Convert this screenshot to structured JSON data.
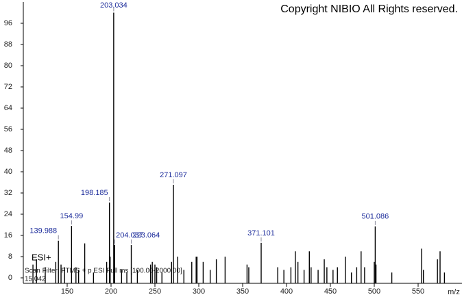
{
  "chart_data": {
    "type": "stem",
    "copyright": "Copyright NIBIO All Rights reserved.",
    "ionization": "ESI+",
    "scan_filter": "Scan Filter: FTMS + p ESI Full ms [100.00-2000.00]",
    "retention_time": "15.042",
    "x_label": "m/z",
    "xlim": [
      100,
      600
    ],
    "ylim": [
      0,
      104
    ],
    "xticks": [
      150,
      200,
      250,
      300,
      350,
      400,
      450,
      500,
      550
    ],
    "yticks": [
      0,
      8,
      16,
      24,
      32,
      40,
      48,
      56,
      64,
      72,
      80,
      88,
      96
    ],
    "series": [
      {
        "color": "#000000",
        "show_labels": true,
        "x": [
          139.988,
          154.99,
          198.185,
          203.034,
          204.037,
          223.064,
          271.097,
          371.101,
          501.086
        ],
        "values": [
          14,
          19.6,
          28.4,
          100,
          12.4,
          12.4,
          35.1,
          13.2,
          19.4
        ]
      },
      {
        "color": "#000000",
        "show_labels": false,
        "x": [
          111,
          115,
          125,
          137,
          143,
          147,
          160,
          163,
          170,
          180,
          195,
          199,
          212,
          218,
          230,
          245,
          247,
          250,
          252,
          258,
          269,
          276,
          283,
          292,
          297,
          298,
          305,
          313,
          320,
          330,
          355,
          357,
          390,
          397,
          405,
          410,
          413,
          420,
          426,
          428,
          436,
          443,
          446,
          453,
          458,
          467,
          474,
          480,
          485,
          489,
          500,
          502,
          520,
          554,
          556,
          572,
          575,
          580
        ],
        "values": [
          5,
          7,
          4,
          6,
          5,
          4,
          4,
          3,
          13,
          2,
          6,
          8,
          3,
          2,
          3,
          5,
          6,
          5,
          4,
          2,
          6,
          8,
          3,
          6,
          8,
          8,
          6,
          3,
          7,
          8,
          5,
          4,
          4,
          3,
          4,
          10,
          6,
          3,
          10,
          4,
          3,
          7,
          4,
          3,
          4,
          8,
          2,
          4,
          10,
          4,
          6,
          5,
          2,
          11,
          3,
          7,
          10,
          2
        ]
      }
    ]
  }
}
